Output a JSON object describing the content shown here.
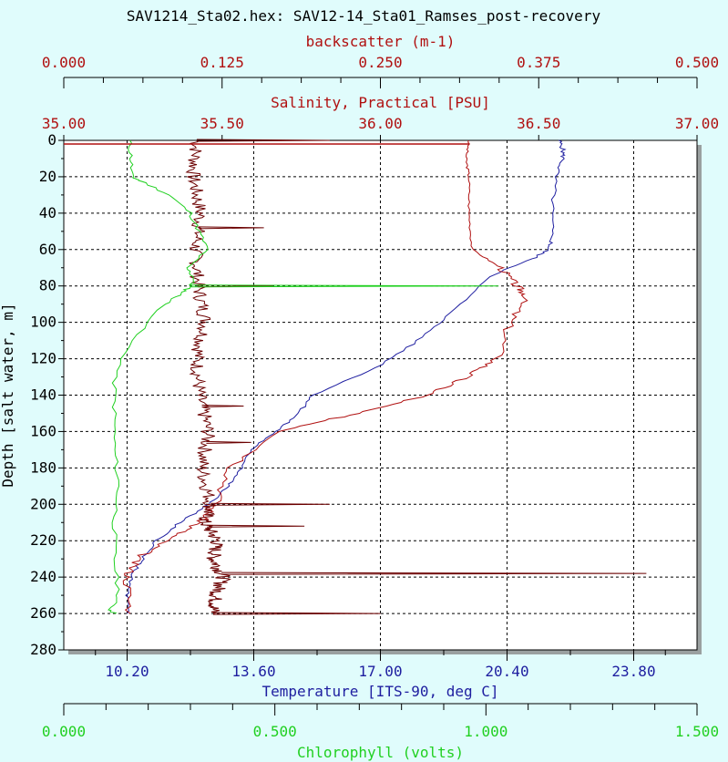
{
  "chart_data": {
    "type": "line",
    "title": "SAV1214_Sta02.hex: SAV12-14_Sta01_Ramses_post-recovery",
    "grid": true,
    "colors": {
      "background": "#e0fcfc",
      "plot_background": "#ffffff",
      "temperature": "#1e1ea0",
      "salinity": "#b01010",
      "backscatter": "#6b0000",
      "chlorophyll": "#20d020",
      "axis_red": "#b01010",
      "axis_blue": "#1e1ea0",
      "axis_green": "#20d020"
    },
    "y_axis": {
      "label": "Depth [salt water, m]",
      "range": [
        0,
        280
      ],
      "ticks": [
        "0",
        "20",
        "40",
        "60",
        "80",
        "100",
        "120",
        "140",
        "160",
        "180",
        "200",
        "220",
        "240",
        "260",
        "280"
      ]
    },
    "x_axes": [
      {
        "id": "backscatter",
        "label": "backscatter (m-1)",
        "position": "top-outer",
        "range": [
          0,
          0.5
        ],
        "ticks": [
          "0.000",
          "0.125",
          "0.250",
          "0.375",
          "0.500"
        ]
      },
      {
        "id": "salinity",
        "label": "Salinity, Practical [PSU]",
        "position": "top-inner",
        "range": [
          35,
          37
        ],
        "ticks": [
          "35.00",
          "35.50",
          "36.00",
          "36.50",
          "37.00"
        ]
      },
      {
        "id": "temperature",
        "label": "Temperature [ITS-90, deg C]",
        "position": "bottom-inner",
        "range": [
          8.5,
          25.5
        ],
        "ticks": [
          "10.20",
          "13.60",
          "17.00",
          "20.40",
          "23.80"
        ]
      },
      {
        "id": "chlorophyll",
        "label": "Chlorophyll (volts)",
        "position": "bottom-outer",
        "range": [
          0,
          1.5
        ],
        "ticks": [
          "0.000",
          "0.500",
          "1.000",
          "1.500"
        ]
      }
    ],
    "series": [
      {
        "id": "temperature",
        "name": "Temperature [ITS-90, deg C]",
        "x_axis": "temperature",
        "x": [
          21.8,
          21.9,
          21.9,
          21.7,
          21.6,
          21.6,
          21.5,
          21.1,
          19.9,
          18.9,
          18.0,
          16.9,
          15.2,
          14.8,
          14.2,
          13.5,
          13.3,
          12.9,
          12.4,
          11.6,
          11.0,
          10.6,
          10.3,
          10.2,
          10.2
        ],
        "y": [
          0,
          5,
          10,
          20,
          40,
          55,
          60,
          65,
          75,
          95,
          110,
          125,
          140,
          150,
          160,
          170,
          180,
          190,
          200,
          210,
          220,
          230,
          240,
          250,
          260
        ]
      },
      {
        "id": "salinity",
        "name": "Salinity, Practical [PSU]",
        "x_axis": "salinity",
        "x": [
          36.28,
          36.27,
          36.28,
          36.28,
          36.29,
          36.38,
          36.43,
          36.46,
          36.41,
          36.37,
          36.27,
          36.15,
          35.92,
          35.69,
          35.53,
          35.48,
          35.43,
          35.32,
          35.23,
          35.2,
          35.21
        ],
        "y": [
          0,
          10,
          20,
          40,
          60,
          70,
          80,
          85,
          100,
          120,
          130,
          140,
          150,
          160,
          180,
          200,
          210,
          220,
          230,
          240,
          260
        ]
      },
      {
        "id": "backscatter",
        "name": "backscatter (m-1)",
        "x_axis": "backscatter",
        "x": [
          0.105,
          0.102,
          0.108,
          0.104,
          0.106,
          0.112,
          0.105,
          0.107,
          0.114,
          0.109,
          0.116,
          0.111,
          0.121,
          0.118,
          0.126,
          0.12,
          0.118
        ],
        "y": [
          0,
          20,
          40,
          60,
          80,
          100,
          120,
          140,
          160,
          180,
          200,
          210,
          220,
          230,
          240,
          250,
          260
        ],
        "spikes": [
          {
            "y": 0,
            "x": 0.21
          },
          {
            "y": 48,
            "x": 0.158
          },
          {
            "y": 80,
            "x": 0.165
          },
          {
            "y": 146,
            "x": 0.142
          },
          {
            "y": 166,
            "x": 0.148
          },
          {
            "y": 200,
            "x": 0.21
          },
          {
            "y": 212,
            "x": 0.19
          },
          {
            "y": 238,
            "x": 0.46
          },
          {
            "y": 260,
            "x": 0.25
          }
        ]
      },
      {
        "id": "chlorophyll",
        "name": "Chlorophyll (volts)",
        "x_axis": "chlorophyll",
        "x": [
          0.155,
          0.16,
          0.16,
          0.18,
          0.25,
          0.3,
          0.32,
          0.34,
          0.29,
          0.31,
          0.3,
          0.28,
          0.24,
          0.16,
          0.12,
          0.12,
          0.12,
          0.13,
          0.12,
          0.12,
          0.13,
          0.11,
          0.12
        ],
        "y": [
          0,
          10,
          20,
          22,
          30,
          40,
          50,
          60,
          70,
          76,
          80,
          84,
          90,
          110,
          130,
          150,
          170,
          190,
          210,
          230,
          250,
          258,
          260
        ],
        "spikes": [
          {
            "y": 80,
            "x": 1.03
          }
        ]
      }
    ]
  }
}
